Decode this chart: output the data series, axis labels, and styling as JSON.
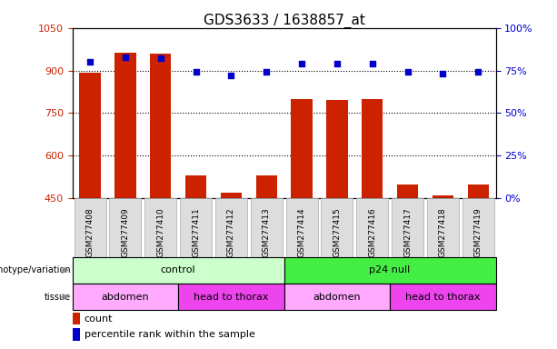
{
  "title": "GDS3633 / 1638857_at",
  "samples": [
    "GSM277408",
    "GSM277409",
    "GSM277410",
    "GSM277411",
    "GSM277412",
    "GSM277413",
    "GSM277414",
    "GSM277415",
    "GSM277416",
    "GSM277417",
    "GSM277418",
    "GSM277419"
  ],
  "counts": [
    893,
    963,
    960,
    530,
    470,
    530,
    800,
    795,
    800,
    500,
    460,
    500
  ],
  "percentile_ranks": [
    80,
    83,
    82,
    74,
    72,
    74,
    79,
    79,
    79,
    74,
    73,
    74
  ],
  "ymin": 450,
  "ymax": 1050,
  "y2min": 0,
  "y2max": 100,
  "yticks": [
    450,
    600,
    750,
    900,
    1050
  ],
  "y2ticks": [
    0,
    25,
    50,
    75,
    100
  ],
  "y2ticklabels": [
    "0%",
    "25%",
    "50%",
    "75%",
    "100%"
  ],
  "bar_color": "#cc2200",
  "dot_color": "#0000cc",
  "genotype_groups": [
    {
      "label": "control",
      "start": 0,
      "end": 6,
      "color": "#ccffcc"
    },
    {
      "label": "p24 null",
      "start": 6,
      "end": 12,
      "color": "#44ee44"
    }
  ],
  "tissue_groups": [
    {
      "label": "abdomen",
      "start": 0,
      "end": 3,
      "color": "#ffaaff"
    },
    {
      "label": "head to thorax",
      "start": 3,
      "end": 6,
      "color": "#ee44ee"
    },
    {
      "label": "abdomen",
      "start": 6,
      "end": 9,
      "color": "#ffaaff"
    },
    {
      "label": "head to thorax",
      "start": 9,
      "end": 12,
      "color": "#ee44ee"
    }
  ],
  "legend_count_color": "#cc2200",
  "legend_dot_color": "#0000cc",
  "left_label_genotype": "genotype/variation",
  "left_label_tissue": "tissue",
  "bar_axis_color": "#cc2200",
  "pct_axis_color": "#0000cc",
  "xticklabel_bg": "#dddddd",
  "xticklabel_edge": "#aaaaaa",
  "grid_yticks": [
    600,
    750,
    900
  ]
}
